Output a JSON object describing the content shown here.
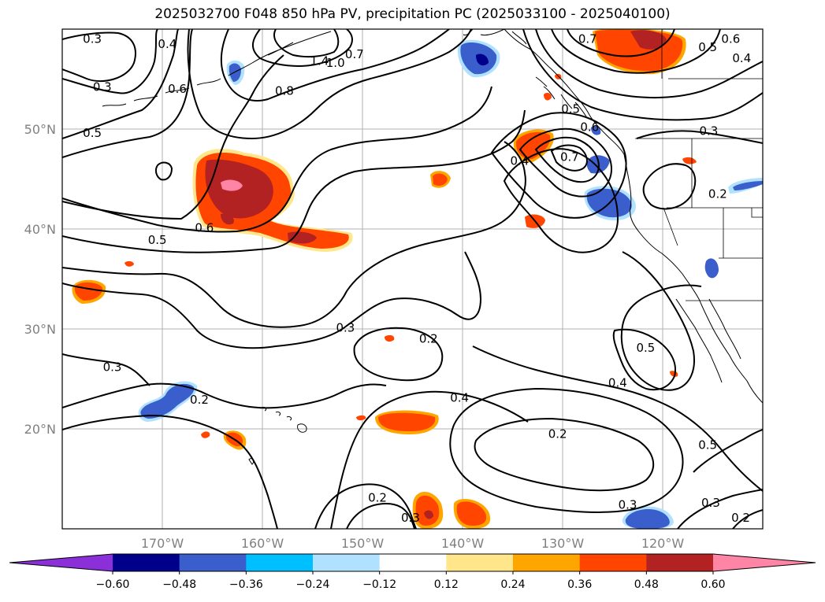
{
  "title": "2025032700 F048 850 hPa PV, precipitation PC (2025033100 - 2025040100)",
  "map": {
    "lon_range": [
      -180,
      -110
    ],
    "lat_range": [
      10,
      60
    ],
    "lon_ticks": [
      {
        "lon": -170,
        "label": "170°W"
      },
      {
        "lon": -160,
        "label": "160°W"
      },
      {
        "lon": -150,
        "label": "150°W"
      },
      {
        "lon": -140,
        "label": "140°W"
      },
      {
        "lon": -130,
        "label": "130°W"
      },
      {
        "lon": -120,
        "label": "120°W"
      }
    ],
    "lat_ticks": [
      {
        "lat": 20,
        "label": "20°N"
      },
      {
        "lat": 30,
        "label": "30°N"
      },
      {
        "lat": 40,
        "label": "40°N"
      },
      {
        "lat": 50,
        "label": "50°N"
      }
    ],
    "grid": true,
    "contour_labels": [
      {
        "text": "0.3",
        "lon": -177,
        "lat": 59
      },
      {
        "text": "0.4",
        "lon": -169.5,
        "lat": 58.5
      },
      {
        "text": "0.3",
        "lon": -176,
        "lat": 54.2
      },
      {
        "text": "0.6",
        "lon": -168.5,
        "lat": 54
      },
      {
        "text": "0.8",
        "lon": -157.8,
        "lat": 53.8
      },
      {
        "text": "1.4",
        "lon": -154.3,
        "lat": 56.8
      },
      {
        "text": "1.0",
        "lon": -152.7,
        "lat": 56.6
      },
      {
        "text": "0.7",
        "lon": -150.8,
        "lat": 57.5
      },
      {
        "text": "0.5",
        "lon": -177,
        "lat": 49.6
      },
      {
        "text": "0.7",
        "lon": -127.5,
        "lat": 59
      },
      {
        "text": "0.6",
        "lon": -113.2,
        "lat": 59
      },
      {
        "text": "0.5",
        "lon": -115.5,
        "lat": 58.2
      },
      {
        "text": "0.4",
        "lon": -112.1,
        "lat": 57.1
      },
      {
        "text": "0.5",
        "lon": -129.2,
        "lat": 52
      },
      {
        "text": "0.6",
        "lon": -127.3,
        "lat": 50.2
      },
      {
        "text": "0.7",
        "lon": -129.3,
        "lat": 47.2
      },
      {
        "text": "0.4",
        "lon": -134.3,
        "lat": 46.8
      },
      {
        "text": "0.3",
        "lon": -115.4,
        "lat": 49.8
      },
      {
        "text": "0.2",
        "lon": -114.5,
        "lat": 43.5
      },
      {
        "text": "0.6",
        "lon": -165.8,
        "lat": 40.1
      },
      {
        "text": "0.5",
        "lon": -170.5,
        "lat": 38.9
      },
      {
        "text": "0.3",
        "lon": -151.7,
        "lat": 30.1
      },
      {
        "text": "0.2",
        "lon": -143.4,
        "lat": 29
      },
      {
        "text": "0.3",
        "lon": -175,
        "lat": 26.2
      },
      {
        "text": "0.2",
        "lon": -166.3,
        "lat": 22.9
      },
      {
        "text": "0.4",
        "lon": -140.3,
        "lat": 23.1
      },
      {
        "text": "0.4",
        "lon": -124.5,
        "lat": 24.6
      },
      {
        "text": "0.5",
        "lon": -121.7,
        "lat": 28.1
      },
      {
        "text": "0.2",
        "lon": -130.5,
        "lat": 19.5
      },
      {
        "text": "0.5",
        "lon": -115.5,
        "lat": 18.4
      },
      {
        "text": "0.3",
        "lon": -145.2,
        "lat": 11.1
      },
      {
        "text": "0.2",
        "lon": -148.5,
        "lat": 13.1
      },
      {
        "text": "0.3",
        "lon": -123.5,
        "lat": 12.4
      },
      {
        "text": "0.3",
        "lon": -115.2,
        "lat": 12.6
      },
      {
        "text": "0.2",
        "lon": -112.2,
        "lat": 11.1
      }
    ]
  },
  "colorbar": {
    "levels": [
      "−0.60",
      "−0.48",
      "−0.36",
      "−0.24",
      "−0.12",
      "0.12",
      "0.24",
      "0.36",
      "0.48",
      "0.60"
    ],
    "colors": [
      "#8b2fd9",
      "#00008b",
      "#3a5fcd",
      "#00bfff",
      "#b0e2ff",
      "#ffffff",
      "#ffe68a",
      "#ffa500",
      "#ff4500",
      "#b22222",
      "#ff85a6"
    ]
  }
}
